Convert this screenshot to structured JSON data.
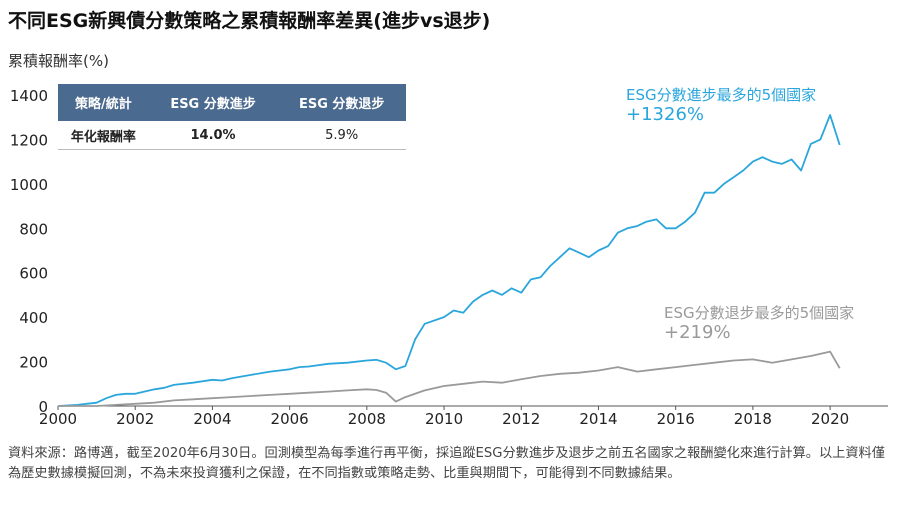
{
  "title": "不同ESG新興債分數策略之累積報酬率差異(進步vs退步)",
  "y_axis_title": "累積報酬率(%)",
  "table": {
    "headers": [
      "策略/統計",
      "ESG 分數進步",
      "ESG 分數退步"
    ],
    "row_label": "年化報酬率",
    "values": [
      "14.0%",
      "5.9%"
    ]
  },
  "annotations": {
    "improving_label": "ESG分數進步最多的5個國家",
    "improving_value": "+1326%",
    "worsening_label": "ESG分數退步最多的5個國家",
    "worsening_value": "+219%"
  },
  "source_text": "資料來源：路博邁，截至2020年6月30日。回測模型為每季進行再平衡，採追蹤ESG分數進步及退步之前五名國家之報酬變化來進行計算。以上資料僅為歷史數據模擬回測，不為未來投資獲利之保證，在不同指數或策略走勢、比重與期間下，可能得到不同數據結果。",
  "colors": {
    "improving": "#2aa6dc",
    "worsening": "#9a9a9a",
    "table_header": "#4b6a8f"
  },
  "chart_data": {
    "type": "line",
    "title": "不同ESG新興債分數策略之累積報酬率差異(進步vs退步)",
    "ylabel": "累積報酬率(%)",
    "xlabel": "",
    "xlim": [
      2000,
      2021.5
    ],
    "ylim": [
      0,
      1400
    ],
    "x_ticks": [
      2000,
      2002,
      2004,
      2006,
      2008,
      2010,
      2012,
      2014,
      2016,
      2018,
      2020
    ],
    "y_ticks": [
      0,
      200,
      400,
      600,
      800,
      1000,
      1200,
      1400
    ],
    "grid": false,
    "series": [
      {
        "name": "ESG分數進步最多的5個國家",
        "color": "#2aa6dc",
        "x": [
          2000,
          2000.5,
          2001,
          2001.25,
          2001.5,
          2001.75,
          2002,
          2002.5,
          2002.75,
          2003,
          2003.5,
          2004,
          2004.25,
          2004.5,
          2005,
          2005.5,
          2006,
          2006.25,
          2006.5,
          2007,
          2007.5,
          2008,
          2008.25,
          2008.5,
          2008.75,
          2009,
          2009.25,
          2009.5,
          2010,
          2010.25,
          2010.5,
          2010.75,
          2011,
          2011.25,
          2011.5,
          2011.75,
          2012,
          2012.25,
          2012.5,
          2012.75,
          2013,
          2013.25,
          2013.5,
          2013.75,
          2014,
          2014.25,
          2014.5,
          2014.75,
          2015,
          2015.25,
          2015.5,
          2015.75,
          2016,
          2016.25,
          2016.5,
          2016.75,
          2017,
          2017.25,
          2017.5,
          2017.75,
          2018,
          2018.25,
          2018.5,
          2018.75,
          2019,
          2019.25,
          2019.5,
          2019.75,
          2020,
          2020.25
        ],
        "values": [
          0,
          5,
          15,
          35,
          50,
          55,
          55,
          75,
          82,
          95,
          105,
          118,
          115,
          125,
          140,
          155,
          165,
          175,
          178,
          190,
          195,
          205,
          208,
          195,
          165,
          180,
          300,
          370,
          400,
          430,
          420,
          470,
          500,
          520,
          500,
          530,
          510,
          570,
          580,
          630,
          670,
          710,
          690,
          670,
          700,
          720,
          780,
          800,
          810,
          830,
          840,
          800,
          800,
          830,
          870,
          960,
          960,
          1000,
          1030,
          1060,
          1100,
          1120,
          1100,
          1090,
          1110,
          1060,
          1180,
          1200,
          1310,
          1175
        ],
        "end_value": 1326
      },
      {
        "name": "ESG分數退步最多的5個國家",
        "color": "#9a9a9a",
        "x": [
          2000,
          2000.5,
          2001,
          2001.5,
          2002,
          2002.5,
          2003,
          2003.5,
          2004,
          2004.5,
          2005,
          2005.5,
          2006,
          2006.5,
          2007,
          2007.5,
          2008,
          2008.25,
          2008.5,
          2008.75,
          2009,
          2009.5,
          2010,
          2010.5,
          2011,
          2011.5,
          2012,
          2012.5,
          2013,
          2013.5,
          2014,
          2014.5,
          2015,
          2015.5,
          2016,
          2016.5,
          2017,
          2017.5,
          2018,
          2018.5,
          2019,
          2019.5,
          2020,
          2020.25
        ],
        "values": [
          0,
          0,
          0,
          5,
          10,
          15,
          25,
          30,
          35,
          40,
          45,
          50,
          55,
          60,
          65,
          70,
          75,
          72,
          60,
          20,
          40,
          70,
          90,
          100,
          110,
          105,
          120,
          135,
          145,
          150,
          160,
          175,
          155,
          165,
          175,
          185,
          195,
          205,
          210,
          195,
          210,
          225,
          245,
          170
        ],
        "end_value": 219
      }
    ]
  }
}
